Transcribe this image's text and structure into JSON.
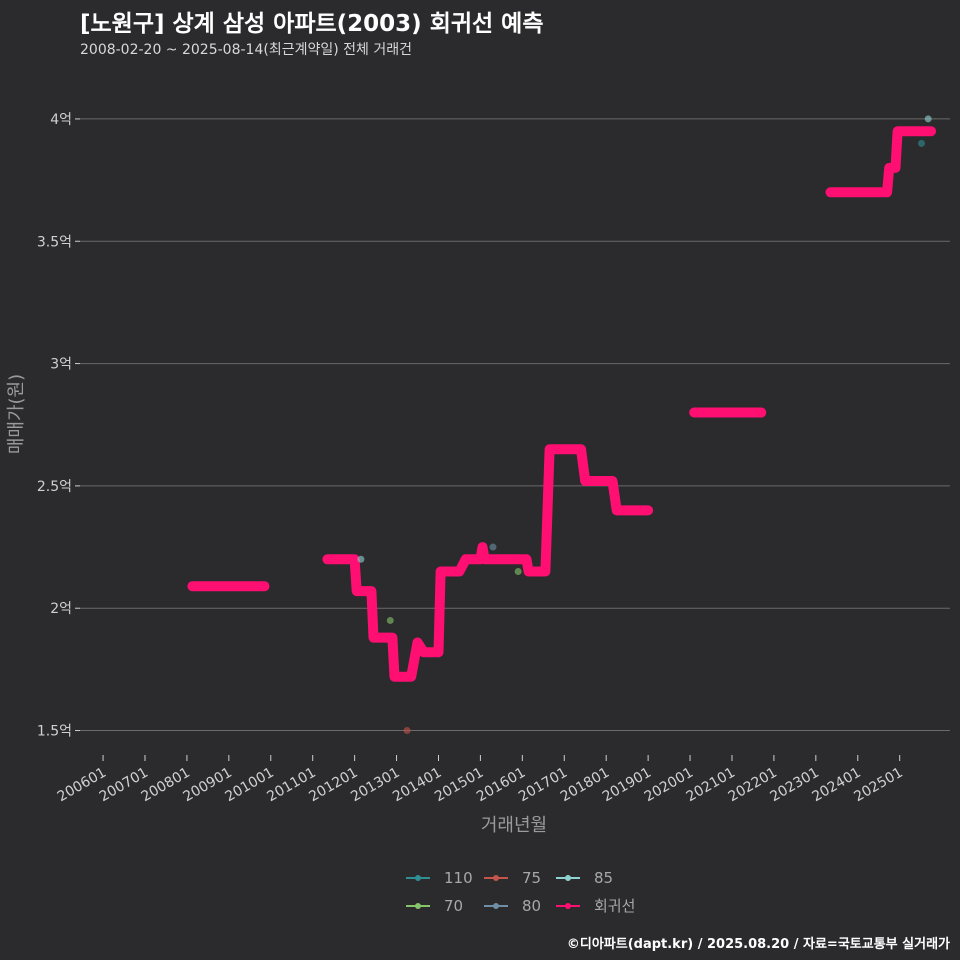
{
  "header": {
    "title": "[노원구] 상계 삼성 아파트(2003) 회귀선 예측",
    "subtitle": "2008-02-20 ~ 2025-08-14(최근계약일) 전체 거래건"
  },
  "footer": {
    "credit": "©디아파트(dapt.kr) / 2025.08.20 / 자료=국토교통부 실거래가"
  },
  "colors": {
    "background": "#2b2a2c",
    "grid": "#6a6a6a",
    "regression": "#ff0f72",
    "s110": "#2f8f92",
    "s75": "#c5544c",
    "s85": "#8fd3d0",
    "s70": "#86c46a",
    "s80": "#6f8fa8"
  },
  "chart_data": {
    "type": "line",
    "title": "[노원구] 상계 삼성 아파트(2003) 회귀선 예측",
    "subtitle": "2008-02-20 ~ 2025-08-14(최근계약일) 전체 거래건",
    "xlabel": "거래년월",
    "ylabel": "매매가(원)",
    "y_unit": "억",
    "ylim": [
      1.4,
      4.2
    ],
    "y_ticks": [
      1.5,
      2,
      2.5,
      3,
      3.5,
      4
    ],
    "y_tick_labels": [
      "1.5억",
      "2억",
      "2.5억",
      "3억",
      "3.5억",
      "4억"
    ],
    "x_ticks": [
      2006,
      2007,
      2008,
      2009,
      2010,
      2011,
      2012,
      2013,
      2014,
      2015,
      2016,
      2017,
      2018,
      2019,
      2020,
      2021,
      2022,
      2023,
      2024,
      2025
    ],
    "x_tick_labels": [
      "200601",
      "200701",
      "200801",
      "200901",
      "201001",
      "201101",
      "201201",
      "201301",
      "201401",
      "201501",
      "201601",
      "201701",
      "201801",
      "201901",
      "202001",
      "202101",
      "202201",
      "202301",
      "202401",
      "202501"
    ],
    "xlim": [
      2005.45,
      2026.2
    ],
    "grid": "horizontal",
    "legend_position": "bottom",
    "series": [
      {
        "name": "회귀선",
        "color": "#ff0f72",
        "segments": [
          [
            [
              2008.13,
              2.09
            ],
            [
              2009.85,
              2.09
            ]
          ],
          [
            [
              2011.35,
              2.2
            ],
            [
              2012.0,
              2.2
            ],
            [
              2012.05,
              2.07
            ],
            [
              2012.4,
              2.07
            ],
            [
              2012.45,
              1.88
            ],
            [
              2012.9,
              1.88
            ],
            [
              2012.95,
              1.72
            ],
            [
              2013.35,
              1.72
            ],
            [
              2013.5,
              1.86
            ],
            [
              2013.65,
              1.82
            ],
            [
              2014.0,
              1.82
            ],
            [
              2014.05,
              2.15
            ],
            [
              2014.5,
              2.15
            ],
            [
              2014.65,
              2.2
            ],
            [
              2015.0,
              2.2
            ],
            [
              2015.05,
              2.25
            ],
            [
              2015.1,
              2.2
            ],
            [
              2016.1,
              2.2
            ],
            [
              2016.15,
              2.15
            ],
            [
              2016.55,
              2.15
            ],
            [
              2016.65,
              2.65
            ],
            [
              2017.4,
              2.65
            ],
            [
              2017.5,
              2.52
            ],
            [
              2018.15,
              2.52
            ],
            [
              2018.25,
              2.4
            ],
            [
              2019.0,
              2.4
            ]
          ],
          [
            [
              2020.1,
              2.8
            ],
            [
              2021.7,
              2.8
            ]
          ],
          [
            [
              2023.35,
              3.7
            ],
            [
              2024.7,
              3.7
            ],
            [
              2024.75,
              3.8
            ],
            [
              2024.9,
              3.8
            ],
            [
              2024.95,
              3.95
            ],
            [
              2025.75,
              3.95
            ]
          ]
        ]
      },
      {
        "name": "110",
        "color": "#2f8f92",
        "points": [
          [
            2025.52,
            3.9
          ]
        ]
      },
      {
        "name": "75",
        "color": "#c5544c",
        "points": [
          [
            2013.25,
            1.5
          ]
        ]
      },
      {
        "name": "85",
        "color": "#8fd3d0",
        "points": [
          [
            2012.15,
            2.2
          ],
          [
            2025.68,
            4.0
          ]
        ]
      },
      {
        "name": "70",
        "color": "#86c46a",
        "points": [
          [
            2012.85,
            1.95
          ],
          [
            2015.9,
            2.15
          ]
        ]
      },
      {
        "name": "80",
        "color": "#6f8fa8",
        "points": [
          [
            2015.3,
            2.25
          ]
        ]
      }
    ],
    "legend": [
      {
        "name": "110",
        "color": "#2f8f92"
      },
      {
        "name": "75",
        "color": "#c5544c"
      },
      {
        "name": "85",
        "color": "#8fd3d0"
      },
      {
        "name": "70",
        "color": "#86c46a"
      },
      {
        "name": "80",
        "color": "#6f8fa8"
      },
      {
        "name": "회귀선",
        "color": "#ff0f72"
      }
    ]
  }
}
